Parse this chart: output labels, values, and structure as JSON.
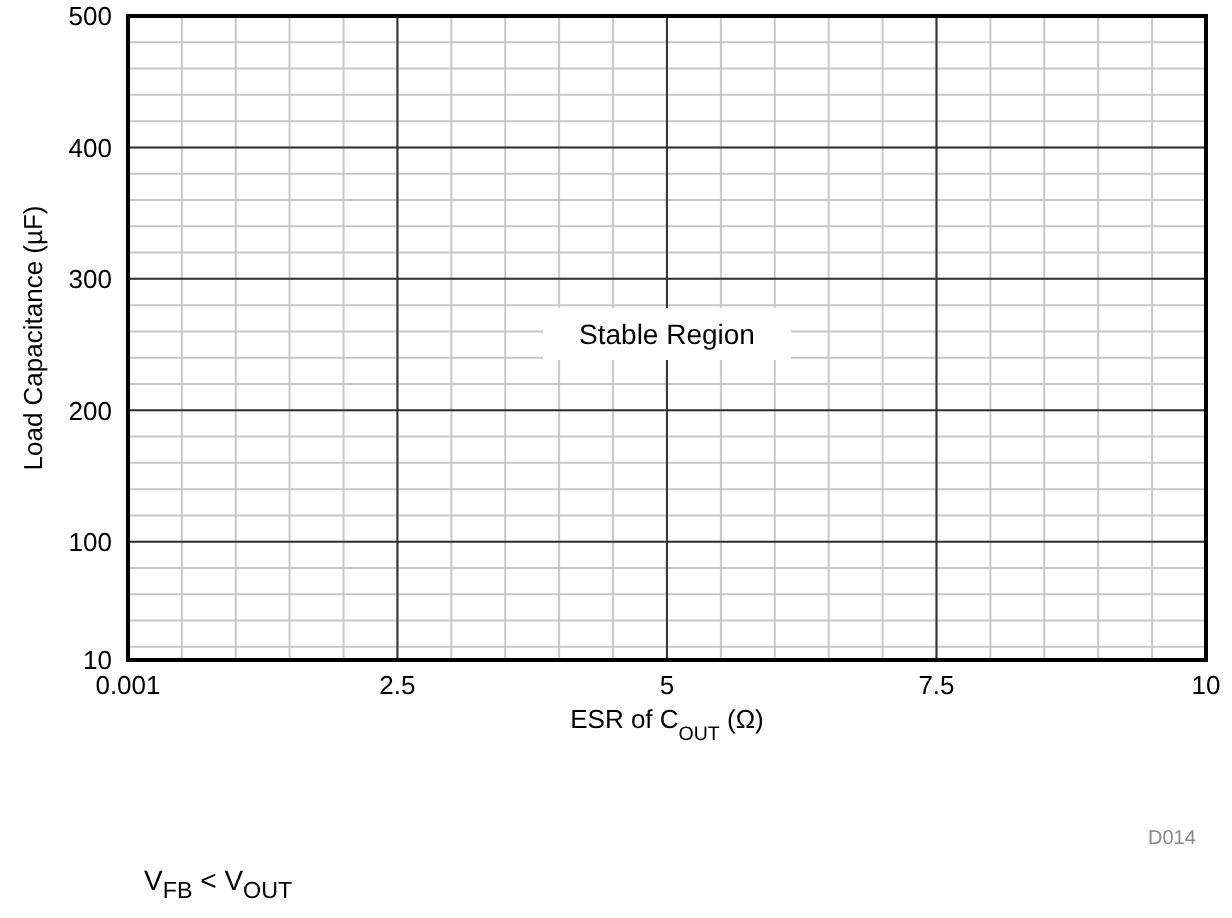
{
  "chart_data": {
    "type": "line",
    "xlabel": "ESR of C$_{OUT}$ (Ω)",
    "ylabel": "Load Capacitance (µF)",
    "xlim": [
      0.001,
      10
    ],
    "xticks": [
      0.001,
      {
        "value": 0.5,
        "label": null
      },
      {
        "value": 1,
        "label": null
      },
      {
        "value": 1.5,
        "label": null
      },
      {
        "value": 2,
        "label": null
      },
      2.5,
      {
        "value": 3,
        "label": null
      },
      {
        "value": 3.5,
        "label": null
      },
      {
        "value": 4,
        "label": null
      },
      {
        "value": 4.5,
        "label": null
      },
      5,
      {
        "value": 5.5,
        "label": null
      },
      {
        "value": 6,
        "label": null
      },
      {
        "value": 6.5,
        "label": null
      },
      {
        "value": 7,
        "label": null
      },
      7.5,
      {
        "value": 8,
        "label": null
      },
      {
        "value": 8.5,
        "label": null
      },
      {
        "value": 9,
        "label": null
      },
      {
        "value": 9.5,
        "label": null
      },
      10
    ],
    "ylim": [
      10,
      500
    ],
    "yticks": [
      10,
      {
        "value": 20,
        "label": null
      },
      {
        "value": 40,
        "label": null
      },
      {
        "value": 60,
        "label": null
      },
      {
        "value": 80,
        "label": null
      },
      100,
      {
        "value": 120,
        "label": null
      },
      {
        "value": 140,
        "label": null
      },
      {
        "value": 160,
        "label": null
      },
      {
        "value": 180,
        "label": null
      },
      200,
      {
        "value": 220,
        "label": null
      },
      {
        "value": 240,
        "label": null
      },
      {
        "value": 260,
        "label": null
      },
      {
        "value": 280,
        "label": null
      },
      300,
      {
        "value": 320,
        "label": null
      },
      {
        "value": 340,
        "label": null
      },
      {
        "value": 360,
        "label": null
      },
      {
        "value": 380,
        "label": null
      },
      400,
      {
        "value": 420,
        "label": null
      },
      {
        "value": 440,
        "label": null
      },
      {
        "value": 460,
        "label": null
      },
      {
        "value": 480,
        "label": null
      },
      500
    ],
    "grid": true,
    "annotations": [
      "Stable Region",
      "D014",
      "V$_{FB}$ < V$_{OUT}$"
    ]
  }
}
